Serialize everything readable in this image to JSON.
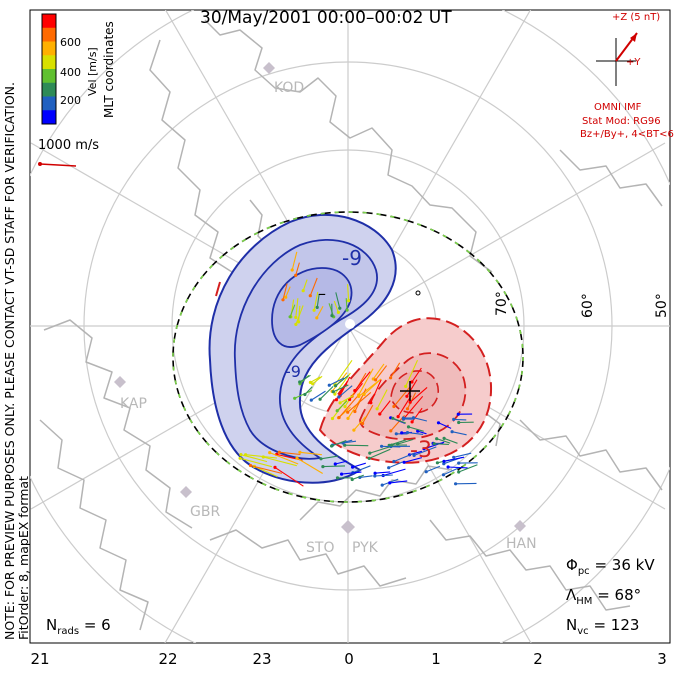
{
  "title": "30/May/2001 00:00–00:02 UT",
  "color_bar": {
    "label": "Vel [m/s]",
    "ticks": [
      "600",
      "400",
      "200"
    ],
    "colors": [
      "#ff0000",
      "#ff6a00",
      "#ffb000",
      "#d8e000",
      "#60c030",
      "#2e8b57",
      "#2060c0",
      "#0000ff"
    ],
    "coords_label": "MLT coordinates"
  },
  "reference_vector": {
    "label": "1000 m/s"
  },
  "notice": {
    "line1": "NOTE: FOR PREVIEW PURPOSES ONLY. PLEASE CONTACT VT-SD STAFF FOR VERIFICATION.",
    "line2": "FitOrder: 8, mapEX format"
  },
  "imf": {
    "z_label": "+Z (5 nT)",
    "y_label": "+Y",
    "source": "OMNI IMF",
    "stat_mod": "Stat Mod: RG96",
    "condition": "Bz+/By+, 4<BT<6"
  },
  "lat_labels": [
    "70°",
    "60°",
    "50°"
  ],
  "mlt_labels": [
    "21",
    "22",
    "23",
    "0",
    "1",
    "2",
    "3"
  ],
  "radar_sites": [
    "KOD",
    "KAP",
    "GBR",
    "STO",
    "PYK",
    "HAN"
  ],
  "contour_labels": {
    "neg_a": "-9",
    "neg_b": "-9",
    "neg_min": "–",
    "pos_max": "+",
    "pos_a": "-3"
  },
  "stats": {
    "phi_pc": {
      "symbol": "Φ",
      "sub": "pc",
      "value": "= 36 kV"
    },
    "lambda_hm": {
      "symbol": "Λ",
      "sub": "HM",
      "value": "= 68°"
    },
    "n_vc": {
      "symbol": "N",
      "sub": "vc",
      "value": "= 123"
    },
    "n_rads": {
      "symbol": "N",
      "sub": "rads",
      "value": "= 6"
    }
  },
  "map_colors": {
    "negative_fill": "#cfd2ee",
    "negative_line": "#1f2fa8",
    "positive_fill": "#f6cccc",
    "positive_line": "#d42020",
    "boundary": "#7cd34a",
    "grid": "#cccccc",
    "coast": "#b4b4b4"
  }
}
